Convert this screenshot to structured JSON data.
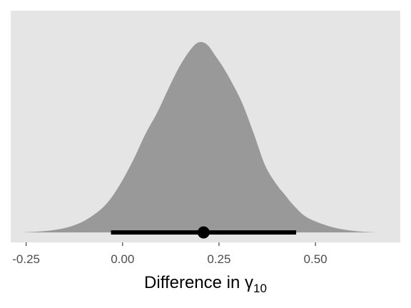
{
  "chart_data": {
    "type": "area",
    "subtype": "density-with-pointinterval",
    "xlabel": {
      "text": "Difference in ",
      "symbol": "γ",
      "subscript": "10"
    },
    "ylabel": "",
    "xlim": [
      -0.29,
      0.72
    ],
    "x_ticks": [
      {
        "value": -0.25,
        "label": "-0.25"
      },
      {
        "value": 0.0,
        "label": "0.00"
      },
      {
        "value": 0.25,
        "label": "0.25"
      },
      {
        "value": 0.5,
        "label": "0.50"
      }
    ],
    "y_ticks_shown": false,
    "grid": false,
    "panel_background": "#e5e5e5",
    "density": {
      "fill": "#999999",
      "x": [
        -0.26,
        -0.22,
        -0.18,
        -0.14,
        -0.1,
        -0.06,
        -0.03,
        0.0,
        0.03,
        0.06,
        0.09,
        0.12,
        0.15,
        0.18,
        0.2,
        0.22,
        0.24,
        0.26,
        0.28,
        0.31,
        0.34,
        0.37,
        0.4,
        0.42,
        0.44,
        0.47,
        0.5,
        0.54,
        0.58,
        0.62,
        0.66
      ],
      "y": [
        0.0,
        0.004,
        0.012,
        0.028,
        0.06,
        0.115,
        0.18,
        0.275,
        0.39,
        0.52,
        0.63,
        0.76,
        0.88,
        0.97,
        1.0,
        0.985,
        0.93,
        0.87,
        0.8,
        0.68,
        0.52,
        0.35,
        0.25,
        0.2,
        0.15,
        0.09,
        0.058,
        0.03,
        0.013,
        0.004,
        0.0
      ]
    },
    "point_interval": {
      "point": 0.21,
      "lower": -0.03,
      "upper": 0.45,
      "color": "#000000"
    }
  }
}
